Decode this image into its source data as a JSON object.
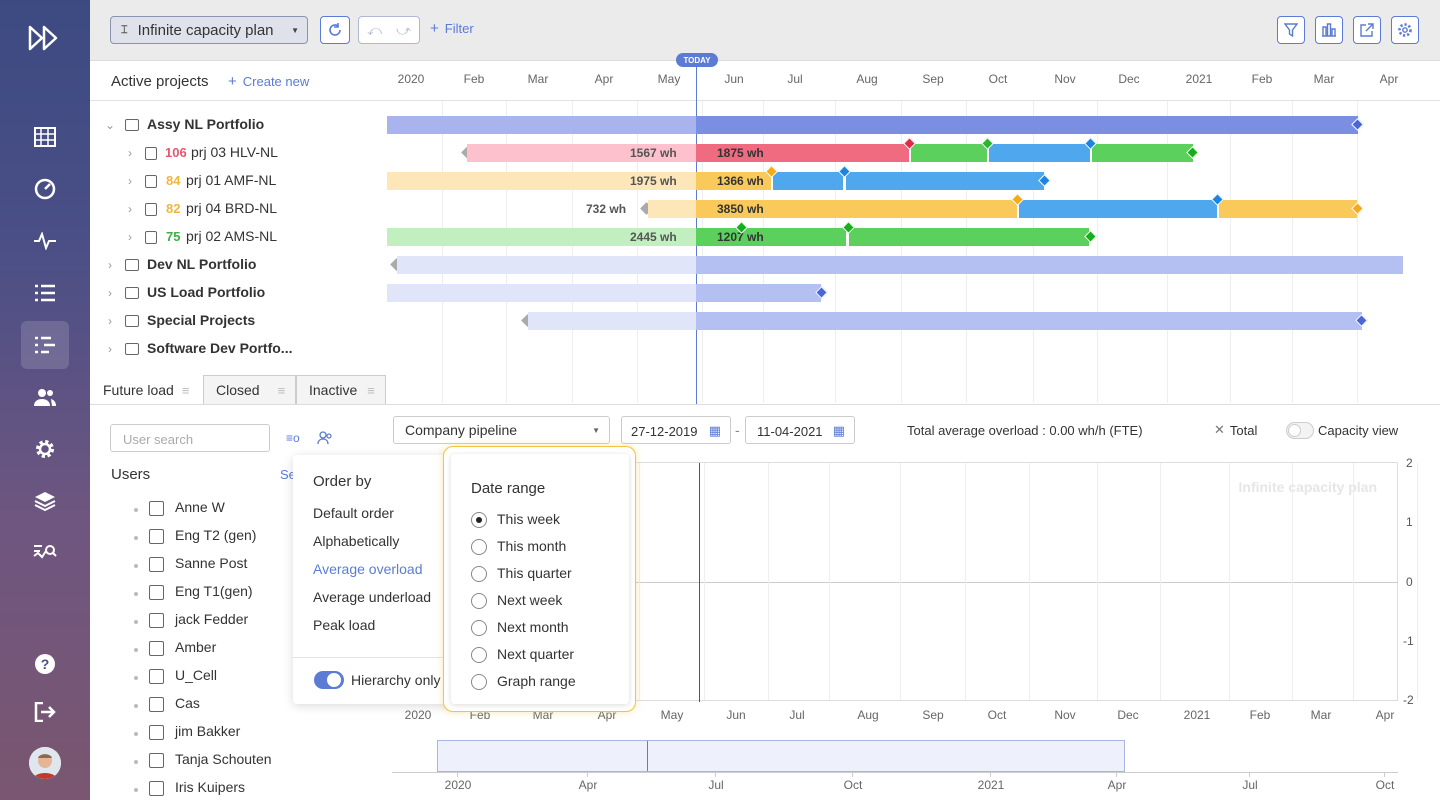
{
  "app": {
    "plan_title": "Infinite capacity plan",
    "filter_label": "Filter"
  },
  "sidebar": {
    "items": [
      "logo-icon",
      "grid-icon",
      "gauge-icon",
      "pulse-icon",
      "list-icon",
      "gantt-icon",
      "users-icon",
      "gear-icon",
      "layers-icon",
      "analytics-icon",
      "help-icon",
      "logout-icon",
      "avatar"
    ],
    "active": "gantt-icon"
  },
  "toolbar_right": [
    "filter-icon",
    "columns-icon",
    "export-icon",
    "settings-icon"
  ],
  "header": {
    "section_title": "Active projects",
    "create_label": "Create new",
    "today_label": "TODAY"
  },
  "timeline": {
    "labels": [
      "2020",
      "Feb",
      "Mar",
      "Apr",
      "May",
      "Jun",
      "Jul",
      "Aug",
      "Sep",
      "Oct",
      "Nov",
      "Dec",
      "2021",
      "Feb",
      "Mar",
      "Apr"
    ]
  },
  "rows": [
    {
      "label": "Assy NL Portfolio",
      "type": "portfolio",
      "expanded": true
    },
    {
      "label": "prj 03 HLV-NL",
      "score": "106",
      "score_color": "#e8566f",
      "type": "project",
      "past": "1567 wh",
      "future": "1875 wh"
    },
    {
      "label": "prj 01 AMF-NL",
      "score": "84",
      "score_color": "#f2b53f",
      "type": "project",
      "past": "1975 wh",
      "future": "1366 wh"
    },
    {
      "label": "prj 04 BRD-NL",
      "score": "82",
      "score_color": "#f2b53f",
      "type": "project",
      "past": "732 wh",
      "future": "3850 wh"
    },
    {
      "label": "prj 02 AMS-NL",
      "score": "75",
      "score_color": "#3cb043",
      "type": "project",
      "past": "2445 wh",
      "future": "1207 wh"
    },
    {
      "label": "Dev NL Portfolio",
      "type": "portfolio"
    },
    {
      "label": "US Load Portfolio",
      "type": "portfolio"
    },
    {
      "label": "Special Projects",
      "type": "portfolio"
    },
    {
      "label": "Software Dev Portfo...",
      "type": "portfolio"
    }
  ],
  "tabs": [
    "Future load",
    "Closed",
    "Inactive"
  ],
  "load": {
    "search_placeholder": "User search",
    "users_heading": "Users",
    "select_link": "Se",
    "pipeline": "Company pipeline",
    "date_from": "27-12-2019",
    "date_to": "11-04-2021",
    "date_sep": "-",
    "overload": "Total average overload : 0.00 wh/h (FTE)",
    "total_label": "Total",
    "capacity_label": "Capacity view",
    "watermark": "Infinite capacity plan",
    "y_ticks": [
      "2",
      "1",
      "0",
      "-1",
      "-2"
    ],
    "users": [
      "Anne W",
      "Eng T2 (gen)",
      "Sanne Post",
      "Eng T1(gen)",
      "jack Fedder",
      "Amber",
      "U_Cell",
      "Cas",
      "jim Bakker",
      "Tanja Schouten",
      "Iris Kuipers"
    ]
  },
  "order_menu": {
    "title": "Order by",
    "items": [
      "Default order",
      "Alphabetically",
      "Average overload",
      "Average underload",
      "Peak load"
    ],
    "selected": "Average overload",
    "toggle_label": "Hierarchy only",
    "toggle_on": true
  },
  "date_menu": {
    "title": "Date range",
    "items": [
      "This week",
      "This month",
      "This quarter",
      "Next week",
      "Next month",
      "Next quarter",
      "Graph range"
    ],
    "selected": "This week"
  },
  "graph": {
    "x_labels": [
      "2020",
      "Feb",
      "Mar",
      "Apr",
      "May",
      "Jun",
      "Jul",
      "Aug",
      "Sep",
      "Oct",
      "Nov",
      "Dec",
      "2021",
      "Feb",
      "Mar",
      "Apr"
    ]
  },
  "minimap": {
    "labels": [
      "2020",
      "Apr",
      "Jul",
      "Oct",
      "2021",
      "Apr",
      "Jul",
      "Oct"
    ]
  }
}
